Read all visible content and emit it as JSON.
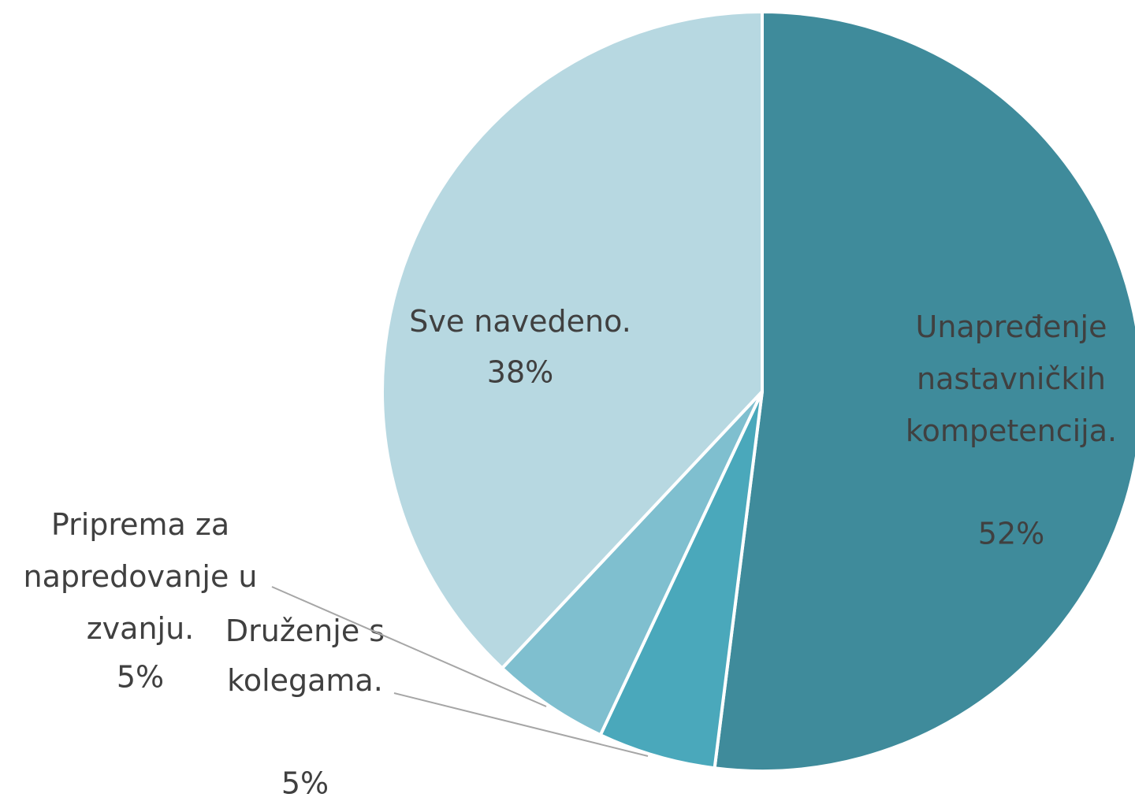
{
  "chart_data": {
    "type": "pie",
    "categories": [
      "Unapređenje\nnastavničkih\nkompetencija.",
      "Druženje s\nkolegama.",
      "Priprema za\nnapredovanje u\nzvanju.",
      "Sve navedeno."
    ],
    "values": [
      52,
      5,
      5,
      38
    ],
    "value_labels": [
      "52%",
      "5%",
      "5%",
      "38%"
    ],
    "colors": [
      "#3f8b9b",
      "#4aa8bb",
      "#7fbfcf",
      "#b7d8e1"
    ]
  }
}
